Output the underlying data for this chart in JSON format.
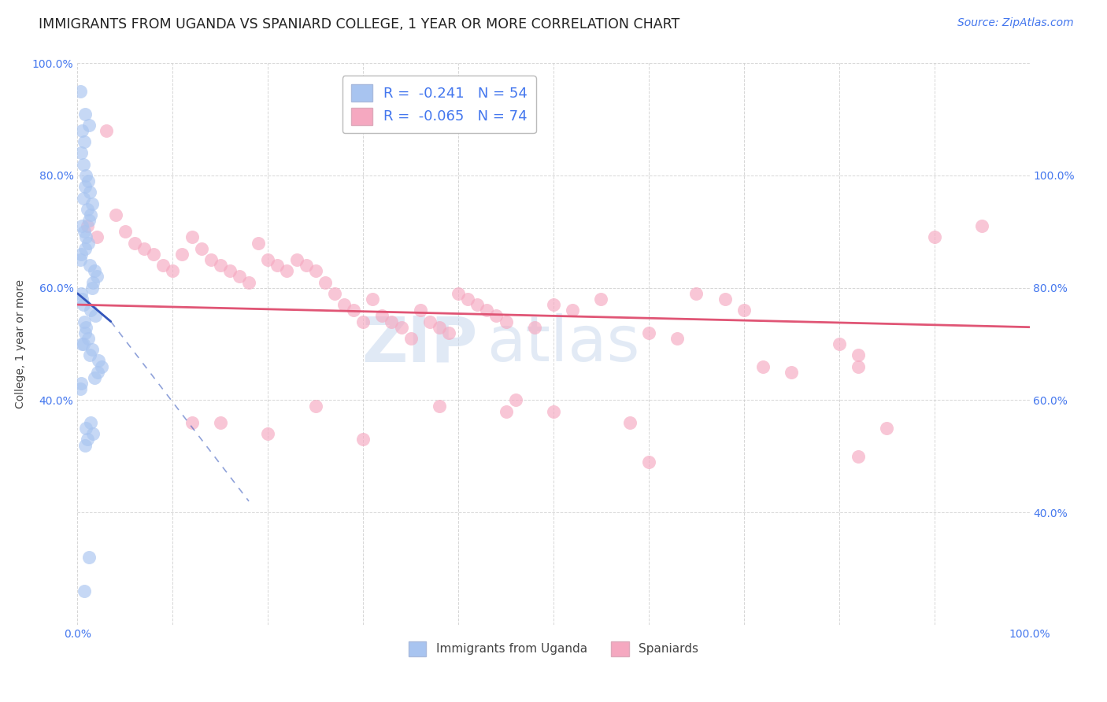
{
  "title": "IMMIGRANTS FROM UGANDA VS SPANIARD COLLEGE, 1 YEAR OR MORE CORRELATION CHART",
  "source": "Source: ZipAtlas.com",
  "ylabel": "College, 1 year or more",
  "legend_blue_R": "-0.241",
  "legend_blue_N": "54",
  "legend_pink_R": "-0.065",
  "legend_pink_N": "74",
  "legend_label_blue": "Immigrants from Uganda",
  "legend_label_pink": "Spaniards",
  "blue_color": "#a8c4f0",
  "pink_color": "#f5a8c0",
  "trend_blue_color": "#3355bb",
  "trend_pink_color": "#e05575",
  "watermark_zip": "ZIP",
  "watermark_atlas": "atlas",
  "xlim": [
    0,
    100
  ],
  "ylim": [
    0,
    100
  ],
  "xticks": [
    0,
    10,
    20,
    30,
    40,
    50,
    60,
    70,
    80,
    90,
    100
  ],
  "xtick_labels": [
    "0.0%",
    "",
    "",
    "",
    "",
    "",
    "",
    "",
    "",
    "",
    "100.0%"
  ],
  "yticks_left": [
    0,
    20,
    40,
    60,
    80,
    100
  ],
  "ytick_labels_left": [
    "",
    "",
    "40.0%",
    "60.0%",
    "80.0%",
    "100.0%"
  ],
  "yticks_right": [
    0,
    20,
    40,
    60,
    80,
    100
  ],
  "ytick_labels_right": [
    "",
    "40.0%",
    "60.0%",
    "80.0%",
    "100.0%",
    ""
  ],
  "blue_x": [
    0.3,
    0.8,
    1.2,
    0.5,
    0.7,
    0.4,
    0.6,
    0.9,
    1.1,
    0.8,
    1.3,
    0.6,
    1.5,
    1.0,
    1.4,
    1.2,
    0.5,
    0.7,
    0.9,
    1.1,
    0.8,
    0.4,
    0.3,
    1.3,
    1.8,
    2.0,
    1.6,
    1.5,
    0.4,
    0.5,
    0.6,
    1.4,
    1.9,
    0.7,
    0.9,
    0.8,
    1.1,
    0.6,
    1.5,
    1.3,
    2.2,
    2.5,
    2.1,
    1.8,
    0.4,
    0.3,
    0.5,
    1.4,
    0.9,
    1.6,
    1.0,
    0.8,
    1.2,
    0.7
  ],
  "blue_y": [
    95,
    91,
    89,
    88,
    86,
    84,
    82,
    80,
    79,
    78,
    77,
    76,
    75,
    74,
    73,
    72,
    71,
    70,
    69,
    68,
    67,
    66,
    65,
    64,
    63,
    62,
    61,
    60,
    59,
    58,
    57,
    56,
    55,
    54,
    53,
    52,
    51,
    50,
    49,
    48,
    47,
    46,
    45,
    44,
    43,
    42,
    50,
    36,
    35,
    34,
    33,
    32,
    12,
    6
  ],
  "pink_x": [
    1.0,
    2.0,
    3.0,
    4.0,
    5.0,
    6.0,
    7.0,
    8.0,
    9.0,
    10.0,
    11.0,
    12.0,
    13.0,
    14.0,
    15.0,
    16.0,
    17.0,
    18.0,
    19.0,
    20.0,
    21.0,
    22.0,
    23.0,
    24.0,
    25.0,
    26.0,
    27.0,
    28.0,
    29.0,
    30.0,
    31.0,
    32.0,
    33.0,
    34.0,
    35.0,
    36.0,
    37.0,
    38.0,
    39.0,
    40.0,
    41.0,
    42.0,
    43.0,
    44.0,
    45.0,
    46.0,
    48.0,
    50.0,
    52.0,
    55.0,
    58.0,
    60.0,
    63.0,
    65.0,
    68.0,
    70.0,
    72.0,
    75.0,
    80.0,
    82.0,
    85.0,
    90.0,
    95.0,
    82.0,
    38.0,
    12.0,
    20.0,
    25.0,
    15.0,
    30.0,
    45.0,
    50.0,
    60.0,
    82.0
  ],
  "pink_y": [
    71,
    69,
    88,
    73,
    70,
    68,
    67,
    66,
    64,
    63,
    66,
    69,
    67,
    65,
    64,
    63,
    62,
    61,
    68,
    65,
    64,
    63,
    65,
    64,
    63,
    61,
    59,
    57,
    56,
    54,
    58,
    55,
    54,
    53,
    51,
    56,
    54,
    53,
    52,
    59,
    58,
    57,
    56,
    55,
    54,
    40,
    53,
    57,
    56,
    58,
    36,
    52,
    51,
    59,
    58,
    56,
    46,
    45,
    50,
    48,
    35,
    69,
    71,
    30,
    39,
    36,
    34,
    39,
    36,
    33,
    38,
    38,
    29,
    46
  ],
  "fig_bg": "#ffffff",
  "plot_bg": "#ffffff",
  "grid_color": "#cccccc",
  "tick_color": "#4477ee",
  "label_color": "#444444",
  "title_color": "#222222",
  "title_fontsize": 12.5,
  "axis_label_fontsize": 10,
  "tick_fontsize": 10,
  "source_fontsize": 10,
  "blue_trend_x0": 0,
  "blue_trend_y0": 59,
  "blue_trend_x1": 3.5,
  "blue_trend_y1": 54,
  "blue_trend_xdash_end": 18,
  "blue_trend_ydash_end": 22,
  "pink_trend_x0": 0,
  "pink_trend_y0": 57,
  "pink_trend_x1": 100,
  "pink_trend_y1": 53
}
